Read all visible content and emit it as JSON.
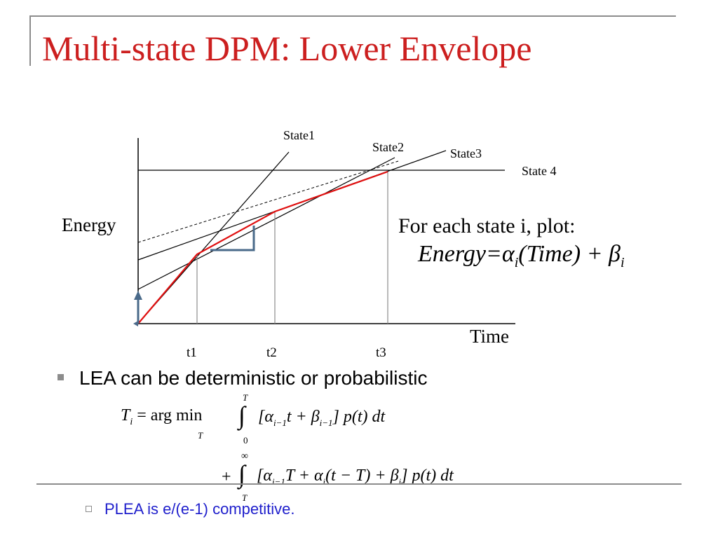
{
  "slide": {
    "title": "Multi-state DPM: Lower Envelope"
  },
  "diagram": {
    "y_axis_label": "Energy",
    "x_axis_label": "Time",
    "states": [
      "State1",
      "State2",
      "State3",
      "State 4"
    ],
    "ticks": [
      "t1",
      "t2",
      "t3"
    ],
    "note_line1": "For each state i, plot:",
    "formula": {
      "lhs": "Energy",
      "eq": "=",
      "alpha": "α",
      "sub_i": "i",
      "time": "(Time)",
      "plus": "+",
      "beta": "β"
    },
    "colors": {
      "envelope": "#e01010",
      "axes": "#000000",
      "bracket": "#4a6a8a"
    }
  },
  "bullets": {
    "main": "LEA can be deterministic or probabilistic",
    "sub": "PLEA is e/(e-1) competitive."
  },
  "equation1": {
    "lhs": "T",
    "sub": "i",
    "body": "= arg min",
    "under": "T",
    "upper": "T",
    "lower": "0",
    "integrand": "[α",
    "integrand_sub": "i−1",
    "rest1": "t + β",
    "rest1_sub": "i−1",
    "rest2": "] p(t) dt"
  },
  "equation2": {
    "upper": "∞",
    "lower": "T",
    "text1": "+",
    "integrand": "[α",
    "sub1": "i−1",
    "mid1": "T + α",
    "sub2": "i",
    "mid2": "(t − T) + β",
    "sub3": "i",
    "tail": "] p(t) dt"
  }
}
